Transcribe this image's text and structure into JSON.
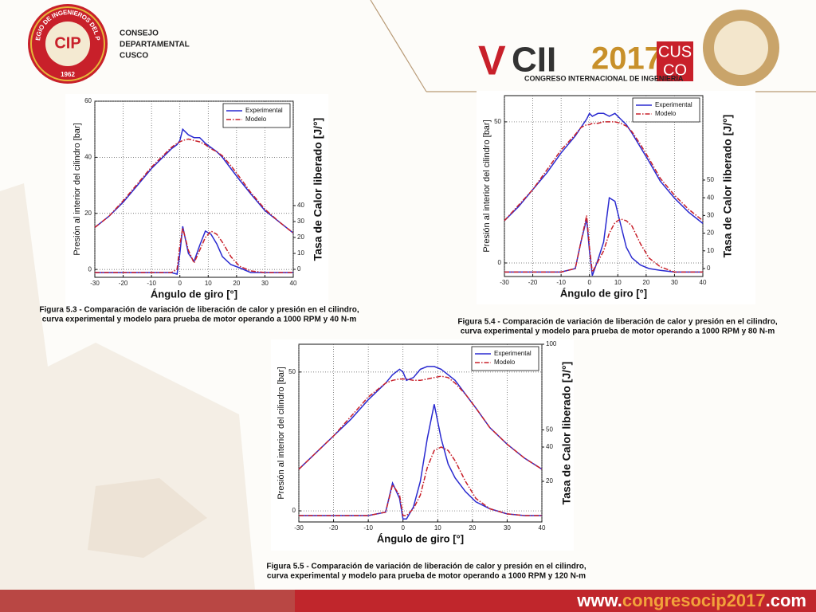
{
  "header": {
    "org": [
      "CONSEJO",
      "DEPARTAMENTAL",
      "CUSCO"
    ],
    "seal_ring": "COLEGIO DE INGENIEROS DEL PERÚ",
    "seal_year": "1962",
    "seal_mark": "CIP",
    "event_v": "V",
    "event_cii": "CII",
    "event_year": "2017",
    "event_city": [
      "CUS",
      "CO"
    ],
    "event_name": "CONGRESO INTERNACIONAL DE INGENIERÍA"
  },
  "footer": {
    "parts": [
      "www.",
      "congresocip2017",
      ".com"
    ]
  },
  "chart_data": [
    {
      "type": "line",
      "xlabel": "Ángulo de giro [°]",
      "ylabel": "Presión al interior del cilindro [bar]",
      "y2label": "Tasa de Calor liberado [J/°]",
      "caption": [
        "Figura 5.3 - Comparación de variación de liberación de calor y presión en el cilindro,",
        "curva experimental y modelo  para prueba de motor operando a 1000 RPM y 40 N-m"
      ],
      "x": [
        -30,
        -25,
        -20,
        -15,
        -10,
        -5,
        -3,
        -1,
        0,
        1,
        3,
        5,
        7,
        9,
        11,
        13,
        15,
        18,
        21,
        25,
        30,
        35,
        40
      ],
      "xlim": [
        -30,
        40
      ],
      "xticks": [
        -30,
        -20,
        -10,
        0,
        10,
        20,
        30,
        40
      ],
      "ylim": [
        -2.8,
        60
      ],
      "yticks": [
        0,
        20,
        40,
        60
      ],
      "y2lim": [
        -5,
        105.5
      ],
      "y2ticks": [
        0,
        10,
        20,
        30,
        40
      ],
      "grid": true,
      "legend": "upper right",
      "series": [
        {
          "name": "Experimental",
          "color": "#2a2ad0",
          "linestyle": "solid",
          "values": [
            15,
            19,
            24,
            30,
            36,
            41,
            43,
            44.5,
            46,
            50,
            48,
            47,
            47,
            45,
            43.5,
            42,
            40,
            36,
            32,
            27,
            21,
            17,
            13
          ]
        },
        {
          "name": "Modelo",
          "color": "#c8202a",
          "linestyle": "dashdot",
          "values": [
            15,
            19,
            24.5,
            30.5,
            36.5,
            41.5,
            43.5,
            45,
            45.5,
            46,
            46.5,
            46,
            45.5,
            44.5,
            43,
            42,
            40.5,
            37,
            33,
            27.5,
            21.5,
            17,
            13
          ]
        },
        {
          "name": "Experimental",
          "color": "#2a2ad0",
          "linestyle": "solid",
          "axis": "y2",
          "values": [
            -2,
            -2,
            -2,
            -2,
            -2,
            -2,
            -2,
            -3,
            10,
            27,
            10,
            5,
            15,
            24,
            22,
            16,
            8,
            3,
            1,
            -2,
            -2,
            -2,
            -2
          ]
        },
        {
          "name": "Modelo",
          "color": "#c8202a",
          "linestyle": "dashdot",
          "axis": "y2",
          "values": [
            -2,
            -2,
            -2,
            -2,
            -2,
            -2,
            -2,
            0,
            15,
            26,
            12,
            4,
            12,
            20,
            24,
            22,
            17,
            8,
            2,
            -1,
            -2,
            -2,
            -2
          ]
        }
      ]
    },
    {
      "type": "line",
      "xlabel": "Ángulo de giro [°]",
      "ylabel": "Presión al interior del cilindro [bar]",
      "y2label": "Tasa de Calor liberado [J/°]",
      "caption": [
        "Figura 5.4 - Comparación de variación de liberación de calor y presión en el cilindro,",
        "curva experimental y modelo  para prueba de motor operando a 1000 RPM y 80 N-m"
      ],
      "x": [
        -30,
        -25,
        -20,
        -15,
        -10,
        -5,
        -3,
        -1,
        0,
        1,
        3,
        5,
        7,
        9,
        11,
        13,
        15,
        18,
        21,
        25,
        30,
        35,
        40
      ],
      "xlim": [
        -30,
        40
      ],
      "xticks": [
        -30,
        -20,
        -10,
        0,
        10,
        20,
        30,
        40
      ],
      "ylim": [
        -4.8,
        59.3
      ],
      "yticks": [
        0,
        50
      ],
      "y2lim": [
        -4.5,
        97.7
      ],
      "y2ticks": [
        0,
        10,
        20,
        30,
        40,
        50
      ],
      "grid": true,
      "legend": "upper right",
      "series": [
        {
          "name": "Experimental",
          "color": "#2a2ad0",
          "linestyle": "solid",
          "values": [
            15,
            20,
            26,
            32,
            39,
            45,
            48,
            51,
            53,
            52,
            53,
            53,
            52,
            53,
            51,
            49,
            46,
            41,
            36,
            29,
            23,
            18,
            14
          ]
        },
        {
          "name": "Modelo",
          "color": "#c8202a",
          "linestyle": "dashdot",
          "values": [
            15,
            20.5,
            26,
            33,
            40,
            45.5,
            48,
            49,
            49,
            49.5,
            49.5,
            50,
            50,
            50,
            49.5,
            48.5,
            46.5,
            42,
            37,
            30,
            24,
            19,
            15
          ]
        },
        {
          "name": "Experimental",
          "color": "#2a2ad0",
          "linestyle": "solid",
          "axis": "y2",
          "values": [
            -2,
            -2,
            -2,
            -2,
            -2,
            0,
            15,
            28,
            10,
            -4,
            5,
            15,
            40,
            38,
            25,
            12,
            6,
            2,
            0,
            -1,
            -2,
            -2,
            -2
          ]
        },
        {
          "name": "Modelo",
          "color": "#c8202a",
          "linestyle": "dashdot",
          "axis": "y2",
          "values": [
            -2,
            -2,
            -2,
            -2,
            -2,
            0,
            15,
            30,
            12,
            -2,
            4,
            10,
            20,
            26,
            28,
            27,
            24,
            14,
            6,
            1,
            -2,
            -2,
            -2
          ]
        }
      ]
    },
    {
      "type": "line",
      "xlabel": "Ángulo de giro [°]",
      "ylabel": "Presión al interior del cilindro [bar]",
      "y2label": "Tasa de Calor liberado [J/°]",
      "caption": [
        "Figura 5.5 - Comparación de variación de liberación de calor y presión en el cilindro,",
        "curva experimental y modelo  para prueba de motor operando a 1000 RPM y 120 N-m"
      ],
      "x": [
        -30,
        -25,
        -20,
        -15,
        -10,
        -5,
        -3,
        -1,
        0,
        1,
        3,
        5,
        7,
        9,
        11,
        13,
        15,
        18,
        21,
        25,
        30,
        35,
        40
      ],
      "xlim": [
        -30,
        40
      ],
      "xticks": [
        -30,
        -20,
        -10,
        0,
        10,
        20,
        30,
        40
      ],
      "ylim": [
        -4,
        60
      ],
      "yticks": [
        0,
        50
      ],
      "y2lim": [
        -3.7,
        100
      ],
      "y2ticks": [
        20,
        40,
        50,
        100
      ],
      "grid": true,
      "legend": "upper right",
      "series": [
        {
          "name": "Experimental",
          "color": "#2a2ad0",
          "linestyle": "solid",
          "values": [
            15,
            21,
            27,
            33,
            40,
            46,
            49,
            51,
            50,
            47,
            48,
            51,
            52,
            52,
            51,
            49,
            47,
            42,
            37,
            30,
            24,
            19,
            15
          ]
        },
        {
          "name": "Modelo",
          "color": "#c8202a",
          "linestyle": "dashdot",
          "values": [
            15,
            21,
            27,
            34,
            41,
            46,
            47,
            47.5,
            47.5,
            47.5,
            47,
            47,
            47.5,
            48,
            48.5,
            48,
            46,
            42,
            37,
            30,
            24,
            19,
            15
          ]
        },
        {
          "name": "Experimental",
          "color": "#2a2ad0",
          "linestyle": "solid",
          "axis": "y2",
          "values": [
            0,
            0,
            0,
            0,
            0,
            2,
            19,
            10,
            -2,
            -2,
            5,
            20,
            45,
            65,
            45,
            30,
            22,
            14,
            8,
            4,
            1,
            0,
            0
          ]
        },
        {
          "name": "Modelo",
          "color": "#c8202a",
          "linestyle": "dashdot",
          "axis": "y2",
          "values": [
            0,
            0,
            0,
            0,
            0,
            2,
            18,
            12,
            0,
            0,
            4,
            12,
            28,
            38,
            40,
            38,
            32,
            20,
            10,
            4,
            1,
            0,
            0
          ]
        }
      ]
    }
  ]
}
